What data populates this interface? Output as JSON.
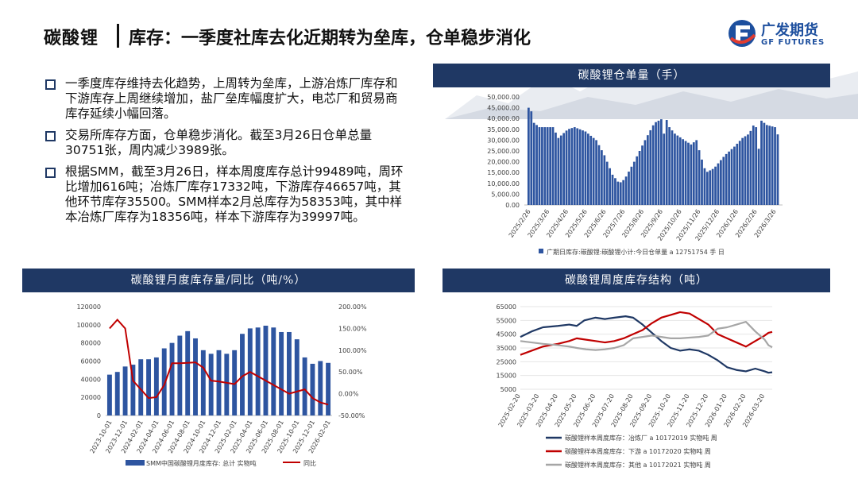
{
  "header": {
    "title": "碳酸锂",
    "subtitle": "库存：一季度社库去化近期转为垒库，仓单稳步消化",
    "logo_cn": "广发期货",
    "logo_en": "GF FUTURES"
  },
  "bullets": [
    "一季度库存维持去化趋势，上周转为垒库，上游冶炼厂库存和下游库存上周继续增加，盐厂垒库幅度扩大，电芯厂和贸易商库存延续小幅回落。",
    "交易所库存方面，仓单稳步消化。截至3月26日仓单总量30751张，周内减少3989张。",
    "根据SMM，截至3月26日，样本周度库存总计99489吨，周环比增加616吨；冶炼厂库存17332吨，下游库存46657吨，其他环节库存35500。SMM样本2月总库存为58353吨，其中样本冶炼厂库存为18356吨，样本下游库存为39997吨。"
  ],
  "colors": {
    "navy": "#1f3864",
    "bar": "#2e55a0",
    "red": "#c00000",
    "gray": "#a6a6a6"
  },
  "chart_data": [
    {
      "type": "bar",
      "title": "碳酸锂仓单量（手）",
      "yticks": [
        "50,000.00",
        "45,000.00",
        "40,000.00",
        "35,000.00",
        "30,000.00",
        "25,000.00",
        "20,000.00",
        "15,000.00",
        "10,000.00",
        "5,000.00",
        "0.00"
      ],
      "ylim": [
        0,
        50000
      ],
      "xticks": [
        "2025/2/26",
        "2025/3/26",
        "2025/4/26",
        "2025/5/26",
        "2025/6/26",
        "2025/7/26",
        "2025/8/26",
        "2025/9/26",
        "2025/10/26",
        "2025/11/26",
        "2025/12/26",
        "2026/1/26",
        "2026/2/26",
        "2026/3/26"
      ],
      "anchors": [
        [
          0,
          45000
        ],
        [
          1,
          46000
        ],
        [
          4,
          38000
        ],
        [
          8,
          36000
        ],
        [
          18,
          36000
        ],
        [
          22,
          31000
        ],
        [
          29,
          35000
        ],
        [
          34,
          36000
        ],
        [
          42,
          34000
        ],
        [
          50,
          30000
        ],
        [
          56,
          23000
        ],
        [
          62,
          14000
        ],
        [
          67,
          10000
        ],
        [
          71,
          12000
        ],
        [
          78,
          20000
        ],
        [
          86,
          30000
        ],
        [
          93,
          38000
        ],
        [
          99,
          40000
        ],
        [
          100,
          33000
        ],
        [
          101,
          41000
        ],
        [
          104,
          36000
        ],
        [
          108,
          33000
        ],
        [
          115,
          30000
        ],
        [
          120,
          28000
        ],
        [
          124,
          30000
        ],
        [
          127,
          23000
        ],
        [
          131,
          15000
        ],
        [
          137,
          17000
        ],
        [
          145,
          23000
        ],
        [
          152,
          27000
        ],
        [
          158,
          31000
        ],
        [
          163,
          33000
        ],
        [
          167,
          38000
        ],
        [
          168,
          36000
        ],
        [
          170,
          26000
        ],
        [
          172,
          39000
        ],
        [
          176,
          37000
        ],
        [
          182,
          36000
        ],
        [
          185,
          31000
        ]
      ],
      "legend": [
        "广期日库存:碳酸锂:碳酸锂小计:今日仓单量  a 12751754 手 日"
      ]
    },
    {
      "type": "bar+line",
      "title": "碳酸锂月度库存量/同比（吨/%）",
      "categories": [
        "2023-10",
        "2023-11",
        "2023-12",
        "2024-01",
        "2024-02",
        "2024-03",
        "2024-04",
        "2024-05",
        "2024-06",
        "2024-07",
        "2024-08",
        "2024-09",
        "2024-10",
        "2024-11",
        "2024-12",
        "2025-01",
        "2025-02",
        "2025-03",
        "2025-04",
        "2025-05",
        "2025-06",
        "2025-07",
        "2025-08",
        "2025-09",
        "2025-10",
        "2025-11",
        "2025-12",
        "2026-01",
        "2026-02"
      ],
      "xticks": [
        "2023-10-01",
        "2023-12-01",
        "2024-02-01",
        "2024-04-01",
        "2024-06-01",
        "2024-08-01",
        "2024-10-01",
        "2024-12-01",
        "2025-02-01",
        "2025-04-01",
        "2025-06-01",
        "2025-08-01",
        "2025-10-01",
        "2025-12-01",
        "2026-02-01"
      ],
      "bars": [
        45000,
        48000,
        54000,
        56000,
        62000,
        62000,
        64000,
        74000,
        80000,
        88000,
        93000,
        85000,
        72000,
        68000,
        72000,
        68000,
        72000,
        90000,
        96000,
        97000,
        99000,
        97000,
        92000,
        92000,
        84000,
        64000,
        57000,
        60000,
        58000
      ],
      "line": [
        150,
        170,
        150,
        30,
        10,
        -10,
        -8,
        20,
        70,
        70,
        71,
        72,
        60,
        30,
        28,
        25,
        22,
        40,
        50,
        40,
        30,
        20,
        10,
        0,
        5,
        10,
        -10,
        -20,
        -25
      ],
      "y1ticks": [
        "120000",
        "100000",
        "80000",
        "60000",
        "40000",
        "20000",
        "0"
      ],
      "y2ticks": [
        "200.00%",
        "150.00%",
        "100.00%",
        "50.00%",
        "0.00%",
        "-50.00%"
      ],
      "y1lim": [
        0,
        120000
      ],
      "y2lim": [
        -50,
        200
      ],
      "legend": [
        "SMM中国碳酸锂月度库存: 总计 实物吨",
        "同比"
      ]
    },
    {
      "type": "line",
      "title": "碳酸锂周度库存结构（吨）",
      "yticks": [
        "65000",
        "55000",
        "45000",
        "35000",
        "25000",
        "15000",
        "5000"
      ],
      "ylim": [
        5000,
        65000
      ],
      "xticks": [
        "2025-02-20",
        "2025-03-20",
        "2025-04-20",
        "2025-05-20",
        "2025-06-20",
        "2025-07-20",
        "2025-08-20",
        "2025-09-20",
        "2025-10-20",
        "2025-11-20",
        "2025-12-20",
        "2026-01-20",
        "2026-02-20",
        "2026-03-20"
      ],
      "xlim": [
        0,
        13.4
      ],
      "series": [
        {
          "name": "碳酸锂样本周度库存：冶炼厂 a 10172019 实物吨 周",
          "color": "#1f3864",
          "points": [
            [
              0,
              43000
            ],
            [
              0.6,
              47000
            ],
            [
              1.2,
              50000
            ],
            [
              2,
              51000
            ],
            [
              2.6,
              52000
            ],
            [
              3,
              51000
            ],
            [
              3.4,
              55000
            ],
            [
              4,
              57000
            ],
            [
              4.5,
              56000
            ],
            [
              5,
              57000
            ],
            [
              5.6,
              58000
            ],
            [
              6,
              57000
            ],
            [
              6.5,
              52000
            ],
            [
              7,
              46000
            ],
            [
              7.5,
              40000
            ],
            [
              8,
              35000
            ],
            [
              8.5,
              33000
            ],
            [
              9,
              34000
            ],
            [
              9.5,
              33000
            ],
            [
              10,
              30000
            ],
            [
              10.5,
              26000
            ],
            [
              11,
              21000
            ],
            [
              11.5,
              19000
            ],
            [
              12,
              18000
            ],
            [
              12.5,
              20000
            ],
            [
              13,
              18000
            ],
            [
              13.2,
              17000
            ],
            [
              13.4,
              17332
            ]
          ]
        },
        {
          "name": "碳酸锂样本周度库存：下游 a 10172020 实物吨 周",
          "color": "#c00000",
          "points": [
            [
              0,
              30000
            ],
            [
              0.6,
              33000
            ],
            [
              1.2,
              36000
            ],
            [
              2,
              38000
            ],
            [
              2.6,
              40000
            ],
            [
              3,
              42000
            ],
            [
              3.5,
              41000
            ],
            [
              4,
              40000
            ],
            [
              4.5,
              39000
            ],
            [
              5,
              40000
            ],
            [
              5.5,
              42000
            ],
            [
              6,
              45000
            ],
            [
              6.5,
              48000
            ],
            [
              7,
              53000
            ],
            [
              7.5,
              57000
            ],
            [
              8,
              59000
            ],
            [
              8.5,
              61000
            ],
            [
              9,
              60000
            ],
            [
              9.5,
              56000
            ],
            [
              10,
              52000
            ],
            [
              10.5,
              45000
            ],
            [
              11,
              42000
            ],
            [
              11.5,
              39000
            ],
            [
              12,
              36000
            ],
            [
              12.5,
              40000
            ],
            [
              13,
              44000
            ],
            [
              13.2,
              46000
            ],
            [
              13.4,
              46657
            ]
          ]
        },
        {
          "name": "碳酸锂样本周度库存：其他 a 10172021 实物吨 周",
          "color": "#a6a6a6",
          "points": [
            [
              0,
              40000
            ],
            [
              0.6,
              39000
            ],
            [
              1.2,
              38000
            ],
            [
              2,
              37000
            ],
            [
              2.6,
              36000
            ],
            [
              3,
              35000
            ],
            [
              3.5,
              34000
            ],
            [
              4,
              33500
            ],
            [
              4.5,
              34000
            ],
            [
              5,
              35000
            ],
            [
              5.5,
              37000
            ],
            [
              6,
              42000
            ],
            [
              6.5,
              43000
            ],
            [
              7,
              44000
            ],
            [
              7.5,
              43000
            ],
            [
              8,
              42000
            ],
            [
              8.5,
              42000
            ],
            [
              9,
              42500
            ],
            [
              9.5,
              43000
            ],
            [
              10,
              44000
            ],
            [
              10.5,
              49000
            ],
            [
              11,
              50000
            ],
            [
              11.5,
              52000
            ],
            [
              12,
              54000
            ],
            [
              12.5,
              47000
            ],
            [
              13,
              41000
            ],
            [
              13.2,
              37000
            ],
            [
              13.4,
              35500
            ]
          ]
        }
      ]
    }
  ]
}
